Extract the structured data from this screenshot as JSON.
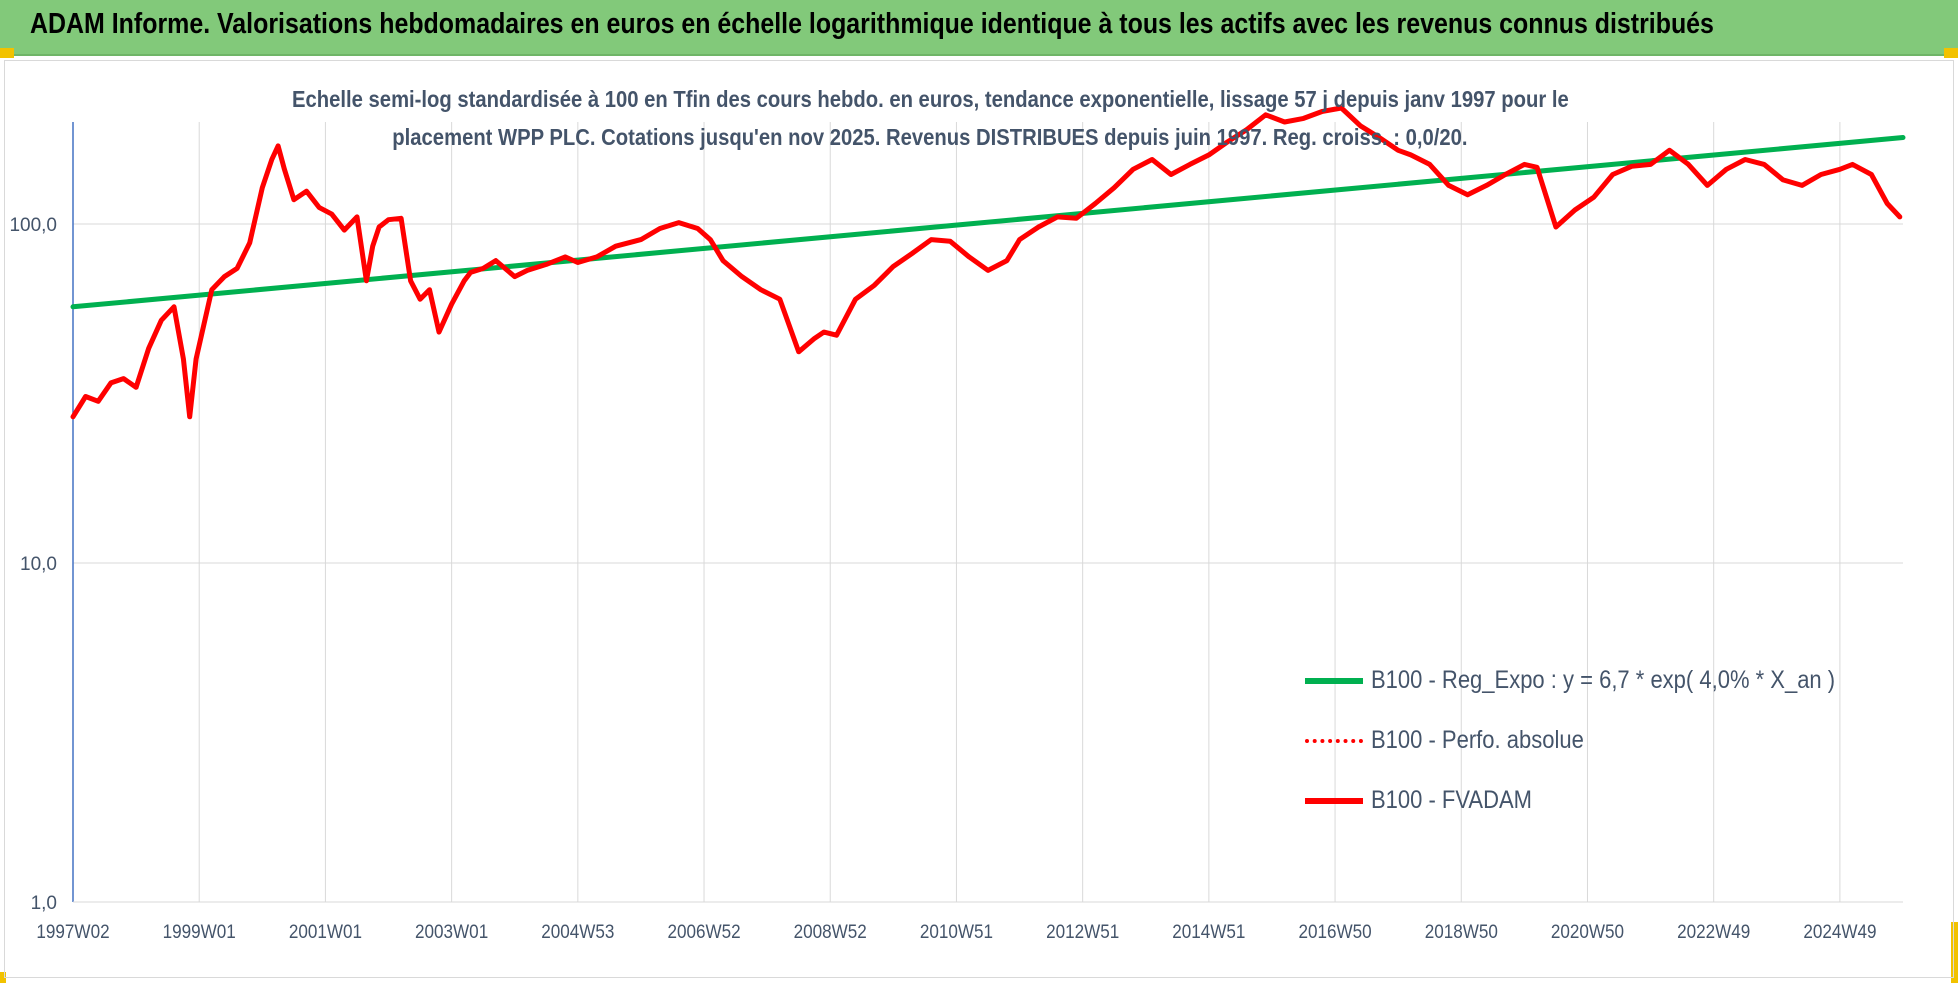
{
  "header": {
    "title": "ADAM Informe. Valorisations hebdomadaires en euros en échelle logarithmique identique à tous les actifs avec les revenus connus distribués",
    "background": "#82c97a"
  },
  "chart_data": {
    "type": "line",
    "title_line1": "Echelle semi-log standardisée à 100 en Tfin des cours hebdo. en euros, tendance exponentielle, lissage 57 j depuis janv 1997 pour le",
    "title_line2": "placement WPP PLC. Cotations jusqu'en nov 2025. Revenus DISTRIBUES depuis juin 1997. Reg. croiss. : 0,0/20.",
    "xlabel": "",
    "ylabel": "",
    "y_scale": "log",
    "ylim": [
      1,
      200
    ],
    "xlim": [
      1997.0,
      2026.0
    ],
    "y_ticks": [
      {
        "value": 1,
        "label": "1,0"
      },
      {
        "value": 10,
        "label": "10,0"
      },
      {
        "value": 100,
        "label": "100,0"
      }
    ],
    "x_ticks": [
      {
        "value": 1997.0,
        "label": "1997W02"
      },
      {
        "value": 1999.0,
        "label": "1999W01"
      },
      {
        "value": 2001.0,
        "label": "2001W01"
      },
      {
        "value": 2003.0,
        "label": "2003W01"
      },
      {
        "value": 2005.0,
        "label": "2004W53"
      },
      {
        "value": 2007.0,
        "label": "2006W52"
      },
      {
        "value": 2009.0,
        "label": "2008W52"
      },
      {
        "value": 2011.0,
        "label": "2010W51"
      },
      {
        "value": 2013.0,
        "label": "2012W51"
      },
      {
        "value": 2015.0,
        "label": "2014W51"
      },
      {
        "value": 2017.0,
        "label": "2016W50"
      },
      {
        "value": 2019.0,
        "label": "2018W50"
      },
      {
        "value": 2021.0,
        "label": "2020W50"
      },
      {
        "value": 2023.0,
        "label": "2022W49"
      },
      {
        "value": 2025.0,
        "label": "2024W49"
      }
    ],
    "grid": true,
    "legend_position": "bottom-right",
    "series": [
      {
        "name": "B100 - Reg_Expo : y = 6,7 * exp( 4,0% *  X_an )",
        "color": "#00b050",
        "style": "solid",
        "x": [
          1997.0,
          2026.0
        ],
        "y": [
          57,
          180
        ]
      },
      {
        "name": "B100 - Perfo. absolue",
        "color": "#ff0000",
        "style": "dotted",
        "x": [],
        "y": []
      },
      {
        "name": "B100 - FVADAM",
        "color": "#ff0000",
        "style": "solid",
        "x": [
          1997.0,
          1997.2,
          1997.4,
          1997.6,
          1997.8,
          1998.0,
          1998.2,
          1998.4,
          1998.6,
          1998.75,
          1998.85,
          1998.95,
          1999.2,
          1999.4,
          1999.6,
          1999.8,
          2000.0,
          2000.15,
          2000.25,
          2000.35,
          2000.5,
          2000.7,
          2000.9,
          2001.1,
          2001.3,
          2001.5,
          2001.65,
          2001.75,
          2001.85,
          2002.0,
          2002.2,
          2002.35,
          2002.5,
          2002.65,
          2002.8,
          2003.0,
          2003.2,
          2003.3,
          2003.5,
          2003.7,
          2004.0,
          2004.2,
          2004.5,
          2004.8,
          2005.0,
          2005.3,
          2005.6,
          2006.0,
          2006.3,
          2006.6,
          2006.9,
          2007.1,
          2007.3,
          2007.6,
          2007.9,
          2008.2,
          2008.5,
          2008.75,
          2008.9,
          2009.1,
          2009.4,
          2009.7,
          2010.0,
          2010.3,
          2010.6,
          2010.9,
          2011.2,
          2011.5,
          2011.8,
          2012.0,
          2012.3,
          2012.6,
          2012.9,
          2013.2,
          2013.5,
          2013.8,
          2014.1,
          2014.4,
          2014.7,
          2015.0,
          2015.3,
          2015.6,
          2015.9,
          2016.2,
          2016.5,
          2016.8,
          2017.1,
          2017.4,
          2017.7,
          2018.0,
          2018.2,
          2018.5,
          2018.8,
          2019.1,
          2019.4,
          2019.7,
          2020.0,
          2020.2,
          2020.5,
          2020.8,
          2021.1,
          2021.4,
          2021.7,
          2022.0,
          2022.3,
          2022.6,
          2022.9,
          2023.2,
          2023.5,
          2023.8,
          2024.1,
          2024.4,
          2024.7,
          2025.0,
          2025.2,
          2025.5,
          2025.75,
          2025.95
        ],
        "y": [
          27,
          31,
          30,
          34,
          35,
          33,
          43,
          52,
          57,
          40,
          27,
          40,
          64,
          70,
          74,
          88,
          128,
          155,
          170,
          145,
          118,
          125,
          112,
          107,
          96,
          105,
          68,
          86,
          98,
          103,
          104,
          68,
          60,
          64,
          48,
          58,
          68,
          72,
          74,
          78,
          70,
          73,
          76,
          80,
          77,
          80,
          86,
          90,
          97,
          101,
          97,
          90,
          78,
          70,
          64,
          60,
          42,
          46,
          48,
          47,
          60,
          66,
          75,
          82,
          90,
          89,
          80,
          73,
          78,
          90,
          98,
          105,
          104,
          115,
          128,
          145,
          155,
          140,
          150,
          160,
          175,
          190,
          210,
          200,
          205,
          215,
          220,
          195,
          180,
          165,
          160,
          150,
          130,
          122,
          130,
          140,
          150,
          147,
          98,
          110,
          120,
          140,
          148,
          150,
          165,
          150,
          130,
          145,
          155,
          150,
          135,
          130,
          140,
          145,
          150,
          140,
          115,
          105
        ]
      }
    ]
  }
}
